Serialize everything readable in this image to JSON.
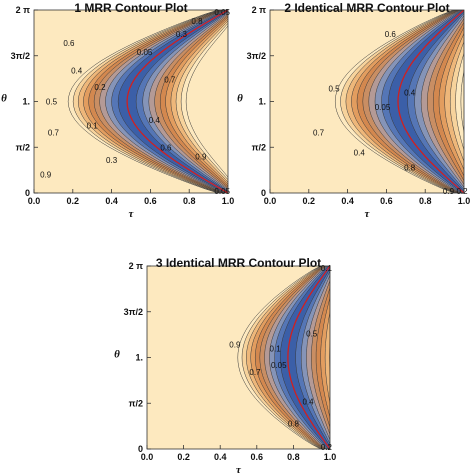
{
  "chart_data": [
    {
      "type": "contour",
      "title": "1 MRR Contour Plot",
      "xlabel": "τ",
      "ylabel": "θ",
      "xlim": [
        0,
        1
      ],
      "ylim_label": "0 to 2π",
      "x_ticks": [
        "0.0",
        "0.2",
        "0.4",
        "0.6",
        "0.8",
        "1.0"
      ],
      "y_ticks": [
        "0",
        "π/2",
        "1.",
        "3π/2",
        "2 π"
      ],
      "levels": [
        0.9,
        0.8,
        0.7,
        0.6,
        0.5,
        0.4,
        0.3,
        0.2,
        0.1,
        0.05
      ],
      "center_tau": 0.48,
      "mid_halfwidth": 0.3,
      "min_line_color": "#d02020",
      "contour_labels": [
        {
          "text": "0.8",
          "tau": 0.84,
          "theta": 0.94
        },
        {
          "text": "0.6",
          "tau": 0.18,
          "theta": 0.82
        },
        {
          "text": "0.4",
          "tau": 0.22,
          "theta": 0.67
        },
        {
          "text": "0.5",
          "tau": 0.09,
          "theta": 0.5
        },
        {
          "text": "0.2",
          "tau": 0.34,
          "theta": 0.58
        },
        {
          "text": "0.1",
          "tau": 0.3,
          "theta": 0.37
        },
        {
          "text": "0.7",
          "tau": 0.1,
          "theta": 0.33
        },
        {
          "text": "0.3",
          "tau": 0.4,
          "theta": 0.18
        },
        {
          "text": "0.9",
          "tau": 0.06,
          "theta": 0.1
        },
        {
          "text": "0.05",
          "tau": 0.57,
          "theta": 0.77
        },
        {
          "text": "0.3",
          "tau": 0.76,
          "theta": 0.87
        },
        {
          "text": "0.7",
          "tau": 0.7,
          "theta": 0.62
        },
        {
          "text": "0.4",
          "tau": 0.62,
          "theta": 0.4
        },
        {
          "text": "0.6",
          "tau": 0.68,
          "theta": 0.25
        },
        {
          "text": "0.9",
          "tau": 0.86,
          "theta": 0.2
        },
        {
          "text": "0.05",
          "tau": 0.97,
          "theta": 0.99
        },
        {
          "text": "0.05",
          "tau": 0.97,
          "theta": 0.01
        }
      ]
    },
    {
      "type": "contour",
      "title": "2 Identical MRR Contour Plot",
      "xlabel": "τ",
      "ylabel": "θ",
      "xlim": [
        0,
        1
      ],
      "ylim_label": "0 to 2π",
      "x_ticks": [
        "0.0",
        "0.2",
        "0.4",
        "0.6",
        "0.8",
        "1.0"
      ],
      "y_ticks": [
        "0",
        "π/2",
        "1.",
        "3π/2",
        "2 π"
      ],
      "levels": [
        0.9,
        0.8,
        0.7,
        0.6,
        0.5,
        0.4,
        0.3,
        0.2,
        0.1,
        0.05
      ],
      "center_tau": 0.66,
      "mid_halfwidth": 0.32,
      "min_line_color": "#d02020",
      "contour_labels": [
        {
          "text": "0.6",
          "tau": 0.62,
          "theta": 0.87
        },
        {
          "text": "0.5",
          "tau": 0.33,
          "theta": 0.57
        },
        {
          "text": "0.4",
          "tau": 0.72,
          "theta": 0.55
        },
        {
          "text": "0.05",
          "tau": 0.58,
          "theta": 0.47
        },
        {
          "text": "0.7",
          "tau": 0.25,
          "theta": 0.33
        },
        {
          "text": "0.4",
          "tau": 0.46,
          "theta": 0.22
        },
        {
          "text": "0.8",
          "tau": 0.72,
          "theta": 0.14
        },
        {
          "text": "0.9",
          "tau": 0.92,
          "theta": 0.01
        },
        {
          "text": "0.2",
          "tau": 0.99,
          "theta": 0.01
        }
      ]
    },
    {
      "type": "contour",
      "title": "3 Identical MRR Contour Plot",
      "xlabel": "τ",
      "ylabel": "θ",
      "xlim": [
        0,
        1
      ],
      "ylim_label": "0 to 2π",
      "x_ticks": [
        "0.0",
        "0.2",
        "0.4",
        "0.6",
        "0.8",
        "1.0"
      ],
      "y_ticks": [
        "0",
        "π/2",
        "1.",
        "3π/2",
        "2 π"
      ],
      "levels": [
        0.9,
        0.8,
        0.7,
        0.6,
        0.5,
        0.4,
        0.3,
        0.2,
        0.1,
        0.05
      ],
      "center_tau": 0.77,
      "mid_halfwidth": 0.27,
      "min_line_color": "#d02020",
      "contour_labels": [
        {
          "text": "0.9",
          "tau": 0.48,
          "theta": 0.57
        },
        {
          "text": "0.5",
          "tau": 0.9,
          "theta": 0.63
        },
        {
          "text": "0.1",
          "tau": 0.7,
          "theta": 0.55
        },
        {
          "text": "0.05",
          "tau": 0.72,
          "theta": 0.46
        },
        {
          "text": "0.7",
          "tau": 0.59,
          "theta": 0.42
        },
        {
          "text": "0.4",
          "tau": 0.88,
          "theta": 0.26
        },
        {
          "text": "0.8",
          "tau": 0.8,
          "theta": 0.14
        },
        {
          "text": "0.1",
          "tau": 0.98,
          "theta": 0.99
        },
        {
          "text": "0.2",
          "tau": 0.98,
          "theta": 0.01
        }
      ]
    }
  ]
}
